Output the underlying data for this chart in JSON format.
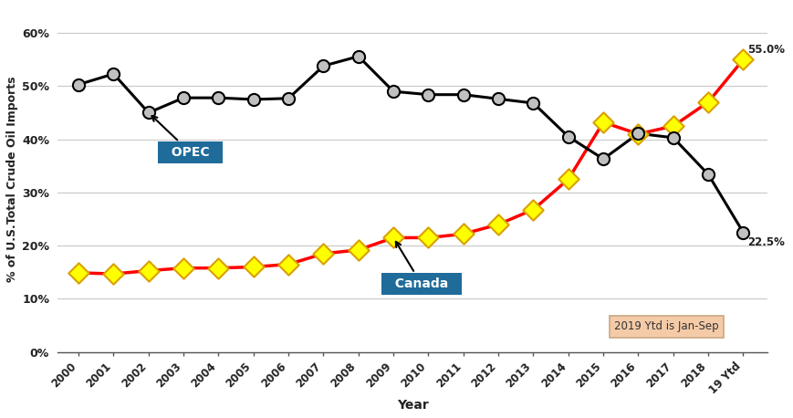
{
  "years": [
    "2000",
    "2001",
    "2002",
    "2003",
    "2004",
    "2005",
    "2006",
    "2007",
    "2008",
    "2009",
    "2010",
    "2011",
    "2012",
    "2013",
    "2014",
    "2015",
    "2016",
    "2017",
    "2018",
    "19 Ytd"
  ],
  "opec": [
    0.503,
    0.523,
    0.45,
    0.478,
    0.478,
    0.475,
    0.477,
    0.538,
    0.556,
    0.49,
    0.484,
    0.484,
    0.476,
    0.468,
    0.405,
    0.363,
    0.411,
    0.403,
    0.334,
    0.225
  ],
  "canada": [
    0.149,
    0.147,
    0.153,
    0.158,
    0.158,
    0.16,
    0.165,
    0.185,
    0.192,
    0.215,
    0.215,
    0.222,
    0.24,
    0.268,
    0.325,
    0.432,
    0.41,
    0.425,
    0.47,
    0.55
  ],
  "opec_color": "#000000",
  "canada_color": "#FF0000",
  "opec_marker_color": "#C0C0C0",
  "canada_marker_color": "#FFFF00",
  "opec_marker_edge": "#000000",
  "canada_marker_edge": "#DAA000",
  "bg_color": "#FFFFFF",
  "grid_color": "#C8C8C8",
  "ylabel": "% of U.S.Total Crude Oil Imports",
  "xlabel": "Year",
  "ylim": [
    0.0,
    0.65
  ],
  "yticks": [
    0.0,
    0.1,
    0.2,
    0.3,
    0.4,
    0.5,
    0.6
  ],
  "annotation_note": "2019 Ytd is Jan-Sep",
  "end_label_canada": "55.0%",
  "end_label_opec": "22.5%",
  "opec_box_color": "#1F6B9A",
  "canada_box_color": "#1F6B9A",
  "note_facecolor": "#F5CBA7",
  "note_edgecolor": "#C8A882"
}
